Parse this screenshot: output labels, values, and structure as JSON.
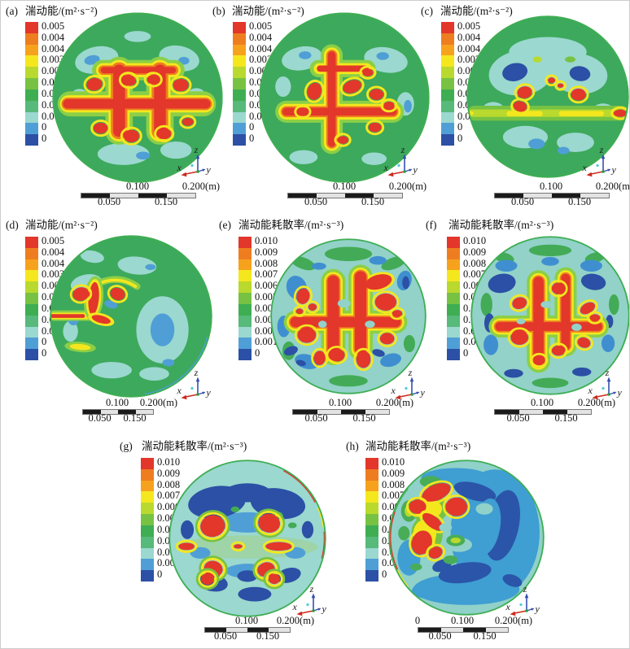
{
  "figure": {
    "kind": "CFD contour figure",
    "panel_count": 8
  },
  "colors": {
    "legend": [
      "#e2372a",
      "#ee7d20",
      "#f6a21d",
      "#f4e71e",
      "#b9d92e",
      "#77c243",
      "#3fae53",
      "#57b97a",
      "#9bd8cf",
      "#4f9fd6",
      "#2b50a5"
    ],
    "axis_x_arrow": "#cc2a1e",
    "axis_zy_arrow": "#3550b0",
    "origin_dot": "#1f9e3a",
    "origin_marker": "#4fc8d8",
    "scale_black": "#1a1a1a",
    "scale_light": "#e3e3e3"
  },
  "panels": [
    {
      "label": "(a)",
      "title": "湍动能/(m²·s⁻²)",
      "legend": [
        "0.005",
        "0.004",
        "0.004",
        "0.003",
        "0.003",
        "0.002",
        "0.002",
        "0.001",
        "0.001",
        "0",
        "0"
      ],
      "scale": {
        "v100": "0.100",
        "v200": "0.200(m)",
        "v050": "0.050",
        "v150": "0.150"
      },
      "axes": {
        "x": "x",
        "y": "y",
        "z": "z"
      }
    },
    {
      "label": "(b)",
      "title": "湍动能/(m²·s⁻²)",
      "legend": [
        "0.005",
        "0.004",
        "0.004",
        "0.003",
        "0.003",
        "0.002",
        "0.002",
        "0.001",
        "0.001",
        "0",
        "0"
      ],
      "scale": {
        "v100": "0.100",
        "v200": "0.200(m)",
        "v050": "0.050",
        "v150": "0.150"
      },
      "axes": {
        "x": "x",
        "y": "y",
        "z": "z"
      }
    },
    {
      "label": "(c)",
      "title": "湍动能/(m²·s⁻²)",
      "legend": [
        "0.005",
        "0.004",
        "0.004",
        "0.003",
        "0.003",
        "0.002",
        "0.002",
        "0.001",
        "0.001",
        "0",
        "0"
      ],
      "scale": {
        "v100": "0.100",
        "v200": "0.200(m)",
        "v050": "0.050",
        "v150": "0.150"
      },
      "axes": {
        "x": "x",
        "y": "y",
        "z": "z"
      }
    },
    {
      "label": "(d)",
      "title": "湍动能/(m²·s⁻²)",
      "legend": [
        "0.005",
        "0.004",
        "0.004",
        "0.003",
        "0.003",
        "0.002",
        "0.002",
        "0.001",
        "0.001",
        "0",
        "0"
      ],
      "scale": {
        "v100": "0.100",
        "v200": "0.200(m)",
        "v050": "0.050",
        "v150": "0.150"
      },
      "axes": {
        "x": "x",
        "y": "y",
        "z": "z"
      }
    },
    {
      "label": "(e)",
      "title": "湍动能耗散率/(m²·s⁻³)",
      "legend": [
        "0.010",
        "0.009",
        "0.008",
        "0.007",
        "0.006",
        "0.005",
        "0.004",
        "0.003",
        "0.002",
        "0.001",
        "0"
      ],
      "scale": {
        "v100": "0.100",
        "v200": "0.200(m)",
        "v050": "0.050",
        "v150": "0.150"
      },
      "axes": {
        "x": "x",
        "y": "y",
        "z": "z"
      }
    },
    {
      "label": "(f)",
      "title": "湍动能耗散率/(m²·s⁻³)",
      "legend": [
        "0.010",
        "0.009",
        "0.008",
        "0.007",
        "0.006",
        "0.005",
        "0.004",
        "0.003",
        "0.002",
        "0.001",
        "0"
      ],
      "scale": {
        "v100": "0.100",
        "v200": "0.200(m)",
        "v050": "0.050",
        "v150": "0.150"
      },
      "axes": {
        "x": "x",
        "y": "y",
        "z": "z"
      }
    },
    {
      "label": "(g)",
      "title": "湍动能耗散率/(m²·s⁻³)",
      "legend": [
        "0.010",
        "0.009",
        "0.008",
        "0.007",
        "0.006",
        "0.005",
        "0.004",
        "0.003",
        "0.002",
        "0.001",
        "0"
      ],
      "scale": {
        "v100": "0.100",
        "v200": "0.200(m)",
        "v050": "0.050",
        "v150": "0.150"
      },
      "axes": {
        "x": "x",
        "y": "y",
        "z": "z"
      }
    },
    {
      "label": "(h)",
      "title": "湍动能耗散率/(m²·s⁻³)",
      "legend": [
        "0.010",
        "0.009",
        "0.008",
        "0.007",
        "0.006",
        "0.005",
        "0.004",
        "0.003",
        "0.002",
        "0.001",
        "0"
      ],
      "scale": {
        "zero": "0",
        "v100": "0.100",
        "v200": "0.200(m)",
        "v050": "0.050",
        "v150": "0.150"
      },
      "axes": {
        "x": "x",
        "y": "y",
        "z": "z"
      }
    }
  ],
  "chart_data": [
    {
      "panel": "a",
      "type": "contour",
      "title": "湍动能/(m²·s⁻²)",
      "quantity": "湍动能 (turbulent kinetic energy)",
      "units": "m²·s⁻²",
      "value_range": [
        0,
        0.005
      ],
      "legend_labels": [
        "0.005",
        "0.004",
        "0.004",
        "0.003",
        "0.003",
        "0.002",
        "0.002",
        "0.001",
        "0.001",
        "0",
        "0"
      ],
      "scale_bar_m": [
        0.05,
        0.1,
        0.15,
        0.2
      ],
      "axis_triad": [
        "x",
        "y",
        "z"
      ],
      "description": "circular cross-section, green field with central red cross/H high-k structure and red eddy spots"
    },
    {
      "panel": "b",
      "type": "contour",
      "title": "湍动能/(m²·s⁻²)",
      "quantity": "湍动能 (turbulent kinetic energy)",
      "units": "m²·s⁻²",
      "value_range": [
        0,
        0.005
      ],
      "legend_labels": [
        "0.005",
        "0.004",
        "0.004",
        "0.003",
        "0.003",
        "0.002",
        "0.002",
        "0.001",
        "0.001",
        "0",
        "0"
      ],
      "scale_bar_m": [
        0.05,
        0.1,
        0.15,
        0.2
      ],
      "axis_triad": [
        "x",
        "y",
        "z"
      ],
      "description": "green field, vertical red trunk with horizontal red band and satellite red spots"
    },
    {
      "panel": "c",
      "type": "contour",
      "title": "湍动能/(m²·s⁻²)",
      "quantity": "湍动能 (turbulent kinetic energy)",
      "units": "m²·s⁻²",
      "value_range": [
        0,
        0.005
      ],
      "legend_labels": [
        "0.005",
        "0.004",
        "0.004",
        "0.003",
        "0.003",
        "0.002",
        "0.002",
        "0.001",
        "0.001",
        "0",
        "0"
      ],
      "scale_bar_m": [
        0.05,
        0.1,
        0.15,
        0.2
      ],
      "axis_triad": [
        "x",
        "y",
        "z"
      ],
      "description": "green field, large cyan/blue low-k lobes top, thin yellow-green mid band with red lens at right rim, small red spots"
    },
    {
      "panel": "d",
      "type": "contour",
      "title": "湍动能/(m²·s⁻²)",
      "quantity": "湍动能 (turbulent kinetic energy)",
      "units": "m²·s⁻²",
      "value_range": [
        0,
        0.005
      ],
      "legend_labels": [
        "0.005",
        "0.004",
        "0.004",
        "0.003",
        "0.003",
        "0.002",
        "0.002",
        "0.001",
        "0.001",
        "0",
        "0"
      ],
      "scale_bar_m": [
        0.05,
        0.1,
        0.15,
        0.2
      ],
      "axis_triad": [
        "x",
        "y",
        "z"
      ],
      "description": "green field, red vertical blob left of center with yellow fringe, red streak to left rim"
    },
    {
      "panel": "e",
      "type": "contour",
      "title": "湍动能耗散率/(m²·s⁻³)",
      "quantity": "湍动能耗散率 (turbulence dissipation rate)",
      "units": "m²·s⁻³",
      "value_range": [
        0,
        0.01
      ],
      "legend_labels": [
        "0.010",
        "0.009",
        "0.008",
        "0.007",
        "0.006",
        "0.005",
        "0.004",
        "0.003",
        "0.002",
        "0.001",
        "0"
      ],
      "scale_bar_m": [
        0.05,
        0.1,
        0.15,
        0.2
      ],
      "axis_triad": [
        "x",
        "y",
        "z"
      ],
      "description": "pale cyan field with blue low-dissipation patches and large red cross-shaped high-dissipation core"
    },
    {
      "panel": "f",
      "type": "contour",
      "title": "湍动能耗散率/(m²·s⁻³)",
      "quantity": "湍动能耗散率 (turbulence dissipation rate)",
      "units": "m²·s⁻³",
      "value_range": [
        0,
        0.01
      ],
      "legend_labels": [
        "0.010",
        "0.009",
        "0.008",
        "0.007",
        "0.006",
        "0.005",
        "0.004",
        "0.003",
        "0.002",
        "0.001",
        "0"
      ],
      "scale_bar_m": [
        0.05,
        0.1,
        0.15,
        0.2
      ],
      "axis_triad": [
        "x",
        "y",
        "z"
      ],
      "description": "pale cyan field, dark blue corner patches, red cross-shaped core with satellite red blobs"
    },
    {
      "panel": "g",
      "type": "contour",
      "title": "湍动能耗散率/(m²·s⁻³)",
      "quantity": "湍动能耗散率 (turbulence dissipation rate)",
      "units": "m²·s⁻³",
      "value_range": [
        0,
        0.01
      ],
      "legend_labels": [
        "0.010",
        "0.009",
        "0.008",
        "0.007",
        "0.006",
        "0.005",
        "0.004",
        "0.003",
        "0.002",
        "0.001",
        "0"
      ],
      "scale_bar_m": [
        0.05,
        0.1,
        0.15,
        0.2
      ],
      "axis_triad": [
        "x",
        "y",
        "z"
      ],
      "description": "pale cyan field, wide dark blue arcs top and bottom, four large red eddy blobs and red mid-line streaks"
    },
    {
      "panel": "h",
      "type": "contour",
      "title": "湍动能耗散率/(m²·s⁻³)",
      "quantity": "湍动能耗散率 (turbulence dissipation rate)",
      "units": "m²·s⁻³",
      "value_range": [
        0,
        0.01
      ],
      "legend_labels": [
        "0.010",
        "0.009",
        "0.008",
        "0.007",
        "0.006",
        "0.005",
        "0.004",
        "0.003",
        "0.002",
        "0.001",
        "0"
      ],
      "scale_bar_m": [
        0,
        0.05,
        0.1,
        0.15,
        0.2
      ],
      "axis_triad": [
        "x",
        "y",
        "z"
      ],
      "description": "blue field with dark blue swirl on right, cluster of red high-dissipation blobs left of center with yellow-green fringe"
    }
  ]
}
